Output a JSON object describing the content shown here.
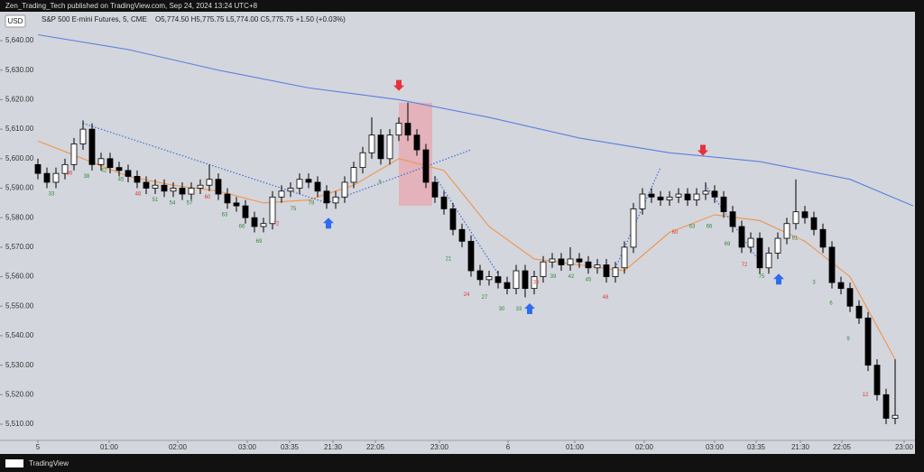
{
  "header": {
    "publisher": "Zen_Trading_Tech published on TradingView.com, Sep 24, 2024 13:24 UTC+8",
    "currency": "USD",
    "footer": "TradingView"
  },
  "chart_data": {
    "type": "candlestick",
    "title": "S&P 500 E-mini Futures, 5, CME",
    "quote": "O5,774.50 H5,775.75 L5,774.00 C5,775.75 +1.50 (+0.03%)",
    "up_color": "#ffffff",
    "down_color": "#000000",
    "open": [
      5598,
      5595,
      5592,
      5595,
      5598,
      5605,
      5610,
      5598,
      5600,
      5597,
      5596,
      5594,
      5592,
      5590,
      5591,
      5589,
      5590,
      5588,
      5590,
      5591,
      5593,
      5588,
      5585,
      5584,
      5580,
      5577,
      5578,
      5587,
      5589,
      5590,
      5593,
      5592,
      5589,
      5585,
      5587,
      5592,
      5597,
      5602,
      5608,
      5600,
      5608,
      5612,
      5608,
      5603,
      5592,
      5587,
      5583,
      5576,
      5572,
      5562,
      5559,
      5560,
      5558,
      5556,
      5562,
      5556,
      5560,
      5565,
      5566,
      5564,
      5566,
      5565,
      5563,
      5564,
      5560,
      5563,
      5570,
      5583,
      5588,
      5587,
      5586,
      5587,
      5588,
      5586,
      5588,
      5589,
      5587,
      5582,
      5577,
      5570,
      5573,
      5563,
      5568,
      5573,
      5578,
      5582,
      5580,
      5576,
      5570,
      5558,
      5556,
      5550,
      5546,
      5530,
      5520,
      5512
    ],
    "high": [
      5600,
      5597,
      5597,
      5600,
      5607,
      5613,
      5612,
      5602,
      5602,
      5599,
      5598,
      5596,
      5594,
      5593,
      5593,
      5592,
      5592,
      5592,
      5593,
      5598,
      5595,
      5590,
      5587,
      5586,
      5582,
      5580,
      5589,
      5591,
      5592,
      5595,
      5595,
      5594,
      5591,
      5589,
      5594,
      5599,
      5604,
      5614,
      5610,
      5610,
      5614,
      5619,
      5610,
      5605,
      5594,
      5589,
      5585,
      5578,
      5574,
      5564,
      5562,
      5562,
      5560,
      5564,
      5564,
      5562,
      5567,
      5568,
      5568,
      5570,
      5568,
      5567,
      5566,
      5566,
      5565,
      5572,
      5585,
      5590,
      5590,
      5589,
      5589,
      5590,
      5590,
      5590,
      5592,
      5591,
      5589,
      5584,
      5579,
      5575,
      5575,
      5570,
      5575,
      5580,
      5593,
      5584,
      5582,
      5578,
      5572,
      5560,
      5558,
      5552,
      5548,
      5532,
      5522,
      5532
    ],
    "low": [
      5593,
      5590,
      5590,
      5593,
      5596,
      5603,
      5596,
      5596,
      5595,
      5594,
      5592,
      5590,
      5588,
      5588,
      5587,
      5587,
      5586,
      5586,
      5588,
      5589,
      5586,
      5583,
      5582,
      5578,
      5575,
      5575,
      5576,
      5585,
      5587,
      5588,
      5590,
      5587,
      5583,
      5583,
      5585,
      5590,
      5595,
      5600,
      5598,
      5598,
      5606,
      5606,
      5601,
      5590,
      5585,
      5581,
      5574,
      5570,
      5560,
      5557,
      5557,
      5556,
      5554,
      5554,
      5553,
      5554,
      5558,
      5563,
      5562,
      5562,
      5563,
      5561,
      5561,
      5558,
      5558,
      5561,
      5568,
      5581,
      5585,
      5584,
      5584,
      5585,
      5584,
      5584,
      5586,
      5585,
      5580,
      5575,
      5568,
      5568,
      5561,
      5561,
      5566,
      5571,
      5576,
      5578,
      5574,
      5568,
      5556,
      5554,
      5548,
      5544,
      5528,
      5518,
      5510,
      5510
    ],
    "close": [
      5595,
      5592,
      5595,
      5598,
      5605,
      5610,
      5598,
      5600,
      5597,
      5596,
      5594,
      5592,
      5590,
      5591,
      5589,
      5590,
      5588,
      5590,
      5591,
      5593,
      5588,
      5585,
      5584,
      5580,
      5577,
      5578,
      5587,
      5589,
      5590,
      5593,
      5592,
      5589,
      5585,
      5587,
      5592,
      5597,
      5602,
      5608,
      5600,
      5608,
      5612,
      5608,
      5603,
      5592,
      5587,
      5583,
      5576,
      5572,
      5562,
      5559,
      5560,
      5558,
      5556,
      5562,
      5556,
      5560,
      5565,
      5566,
      5564,
      5566,
      5565,
      5563,
      5564,
      5560,
      5563,
      5570,
      5583,
      5588,
      5587,
      5586,
      5587,
      5588,
      5586,
      5588,
      5589,
      5587,
      5582,
      5577,
      5570,
      5573,
      5563,
      5568,
      5573,
      5578,
      5582,
      5580,
      5576,
      5570,
      5558,
      5556,
      5550,
      5546,
      5530,
      5520,
      5512,
      5513
    ],
    "lines": [
      {
        "color": "#5b7fe0",
        "x": [
          0,
          10,
          20,
          30,
          40,
          50,
          60,
          70,
          80,
          90,
          97
        ],
        "values": [
          5642,
          5637,
          5630,
          5624,
          5620,
          5614,
          5607,
          5602,
          5599,
          5593,
          5584
        ]
      },
      {
        "color": "#f0944a",
        "x": [
          0,
          5,
          10,
          15,
          20,
          25,
          30,
          35,
          40,
          45,
          50,
          55,
          60,
          65,
          70,
          75,
          80,
          85,
          90,
          95
        ],
        "values": [
          5606,
          5600,
          5594,
          5591,
          5589,
          5585,
          5586,
          5591,
          5600,
          5596,
          5577,
          5566,
          5564,
          5562,
          5575,
          5581,
          5579,
          5572,
          5560,
          5532
        ]
      }
    ],
    "trendlines": [
      {
        "from": [
          5,
          5612
        ],
        "to": [
          32,
          5585
        ]
      },
      {
        "from": [
          32,
          5585
        ],
        "to": [
          48,
          5603
        ]
      },
      {
        "from": [
          44,
          5594
        ],
        "to": [
          51,
          5561
        ]
      },
      {
        "from": [
          64,
          5563
        ],
        "to": [
          69,
          5597
        ]
      },
      {
        "from": [
          74,
          5591
        ],
        "to": [
          80,
          5565
        ]
      }
    ],
    "zone": {
      "x": [
        40,
        43.7
      ],
      "y": [
        5584,
        5619
      ],
      "color": "#e8a6ad"
    },
    "arrows": [
      {
        "x": 40,
        "y": 5623,
        "dir": "down",
        "color": "#e8313e"
      },
      {
        "x": 73.7,
        "y": 5601,
        "dir": "down",
        "color": "#e8313e"
      },
      {
        "x": 32.2,
        "y": 5580,
        "dir": "up",
        "color": "#2f6bf0"
      },
      {
        "x": 54.5,
        "y": 5551,
        "dir": "up",
        "color": "#2f6bf0"
      },
      {
        "x": 82.1,
        "y": 5561,
        "dir": "up",
        "color": "#2f6bf0"
      }
    ],
    "labels": [
      {
        "x": 1.5,
        "y": 5588,
        "text": "33",
        "color": "#2e8b3a"
      },
      {
        "x": 3.5,
        "y": 5595,
        "text": "36",
        "color": "#d93a3a"
      },
      {
        "x": 5.4,
        "y": 5594,
        "text": "38",
        "color": "#2e8b3a"
      },
      {
        "x": 7.3,
        "y": 5596,
        "text": "42",
        "color": "#2e8b3a"
      },
      {
        "x": 9.2,
        "y": 5593,
        "text": "45",
        "color": "#2e8b3a"
      },
      {
        "x": 11.1,
        "y": 5588,
        "text": "48",
        "color": "#d93a3a"
      },
      {
        "x": 13,
        "y": 5586,
        "text": "51",
        "color": "#2e8b3a"
      },
      {
        "x": 14.9,
        "y": 5585,
        "text": "54",
        "color": "#2e8b3a"
      },
      {
        "x": 16.8,
        "y": 5585,
        "text": "57",
        "color": "#2e8b3a"
      },
      {
        "x": 18.8,
        "y": 5587,
        "text": "60",
        "color": "#d93a3a"
      },
      {
        "x": 20.7,
        "y": 5581,
        "text": "63",
        "color": "#2e8b3a"
      },
      {
        "x": 22.6,
        "y": 5577,
        "text": "66",
        "color": "#2e8b3a"
      },
      {
        "x": 24.5,
        "y": 5572,
        "text": "69",
        "color": "#2e8b3a"
      },
      {
        "x": 26.4,
        "y": 5578,
        "text": "72",
        "color": "#d93a3a"
      },
      {
        "x": 28.3,
        "y": 5583,
        "text": "75",
        "color": "#2e8b3a"
      },
      {
        "x": 30.3,
        "y": 5585,
        "text": "78",
        "color": "#2e8b3a"
      },
      {
        "x": 37.9,
        "y": 5592,
        "text": "9",
        "color": "#2e8b3a"
      },
      {
        "x": 45.5,
        "y": 5566,
        "text": "21",
        "color": "#2e8b3a"
      },
      {
        "x": 47.5,
        "y": 5554,
        "text": "24",
        "color": "#d93a3a"
      },
      {
        "x": 49.5,
        "y": 5553,
        "text": "27",
        "color": "#2e8b3a"
      },
      {
        "x": 51.4,
        "y": 5549,
        "text": "30",
        "color": "#2e8b3a"
      },
      {
        "x": 53.3,
        "y": 5549,
        "text": "33",
        "color": "#2e8b3a"
      },
      {
        "x": 55.2,
        "y": 5558,
        "text": "36",
        "color": "#d93a3a"
      },
      {
        "x": 57.1,
        "y": 5560,
        "text": "39",
        "color": "#2e8b3a"
      },
      {
        "x": 59.1,
        "y": 5560,
        "text": "42",
        "color": "#2e8b3a"
      },
      {
        "x": 61,
        "y": 5559,
        "text": "45",
        "color": "#2e8b3a"
      },
      {
        "x": 62.9,
        "y": 5553,
        "text": "48",
        "color": "#d93a3a"
      },
      {
        "x": 70.6,
        "y": 5575,
        "text": "60",
        "color": "#d93a3a"
      },
      {
        "x": 72.5,
        "y": 5577,
        "text": "63",
        "color": "#2e8b3a"
      },
      {
        "x": 74.4,
        "y": 5577,
        "text": "66",
        "color": "#2e8b3a"
      },
      {
        "x": 76.4,
        "y": 5571,
        "text": "69",
        "color": "#2e8b3a"
      },
      {
        "x": 78.3,
        "y": 5564,
        "text": "72",
        "color": "#d93a3a"
      },
      {
        "x": 80.2,
        "y": 5560,
        "text": "75",
        "color": "#2e8b3a"
      },
      {
        "x": 83.9,
        "y": 5573,
        "text": "81",
        "color": "#2e8b3a"
      },
      {
        "x": 86,
        "y": 5558,
        "text": "3",
        "color": "#2e8b3a"
      },
      {
        "x": 87.9,
        "y": 5551,
        "text": "6",
        "color": "#2e8b3a"
      },
      {
        "x": 89.8,
        "y": 5539,
        "text": "9",
        "color": "#2e8b3a"
      },
      {
        "x": 91.7,
        "y": 5520,
        "text": "12",
        "color": "#d93a3a"
      }
    ],
    "xlim": [
      -4.2,
      96.2
    ],
    "ylim": [
      5504.5,
      5649.5
    ],
    "xticks": [
      {
        "value": 0,
        "label": "5"
      },
      {
        "value": 7.9,
        "label": "01:00"
      },
      {
        "value": 15.5,
        "label": "02:00"
      },
      {
        "value": 23.2,
        "label": "03:00"
      },
      {
        "value": 27.9,
        "label": "03:35"
      },
      {
        "value": 32.7,
        "label": "21:30"
      },
      {
        "value": 37.4,
        "label": "22:05"
      },
      {
        "value": 44.5,
        "label": "23:00"
      },
      {
        "value": 52.1,
        "label": "6"
      },
      {
        "value": 59.5,
        "label": "01:00"
      },
      {
        "value": 67.2,
        "label": "02:00"
      },
      {
        "value": 75,
        "label": "03:00"
      },
      {
        "value": 79.6,
        "label": "03:35"
      },
      {
        "value": 84.5,
        "label": "21:30"
      },
      {
        "value": 89.1,
        "label": "22:05"
      },
      {
        "value": 96,
        "label": "23:00"
      }
    ],
    "yticks": [
      {
        "value": 5510,
        "label": "5,510.00"
      },
      {
        "value": 5520,
        "label": "5,520.00"
      },
      {
        "value": 5530,
        "label": "5,530.00"
      },
      {
        "value": 5540,
        "label": "5,540.00"
      },
      {
        "value": 5550,
        "label": "5,550.00"
      },
      {
        "value": 5560,
        "label": "5,560.00"
      },
      {
        "value": 5570,
        "label": "5,570.00"
      },
      {
        "value": 5580,
        "label": "5,580.00"
      },
      {
        "value": 5590,
        "label": "5,590.00"
      },
      {
        "value": 5600,
        "label": "5,600.00"
      },
      {
        "value": 5610,
        "label": "5,610.00"
      },
      {
        "value": 5620,
        "label": "5,620.00"
      },
      {
        "value": 5630,
        "label": "5,630.00"
      },
      {
        "value": 5640,
        "label": "5,640.00"
      }
    ]
  }
}
